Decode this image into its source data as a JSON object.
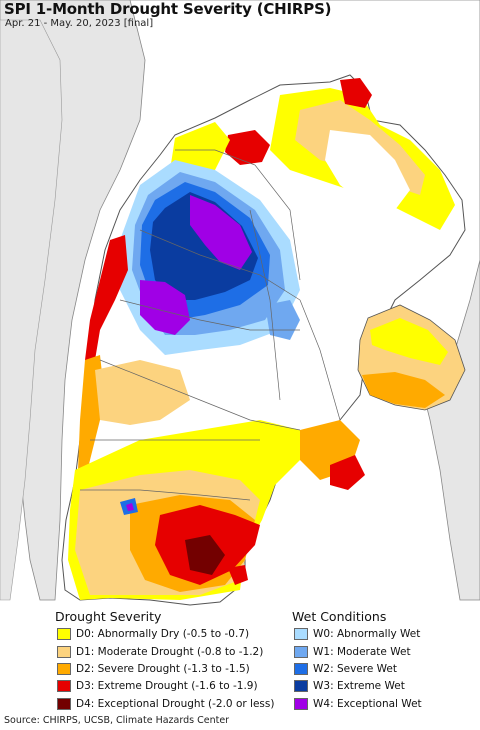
{
  "title": "SPI 1-Month Drought Severity (CHIRPS)",
  "subtitle": "Apr. 21 - May. 20, 2023 [final]",
  "legend": {
    "drought_heading": "Drought Severity",
    "wet_heading": "Wet Conditions",
    "drought": [
      {
        "label": "D0: Abnormally Dry (-0.5 to -0.7)",
        "color": "#ffff00"
      },
      {
        "label": "D1: Moderate Drought (-0.8 to -1.2)",
        "color": "#fcd37f"
      },
      {
        "label": "D2: Severe Drought (-1.3 to -1.5)",
        "color": "#ffaa00"
      },
      {
        "label": "D3: Extreme Drought (-1.6 to -1.9)",
        "color": "#e60000"
      },
      {
        "label": "D4: Exceptional Drought (-2.0 or less)",
        "color": "#730000"
      }
    ],
    "wet": [
      {
        "label": "W0: Abnormally Wet",
        "color": "#aadcff"
      },
      {
        "label": "W1: Moderate Wet",
        "color": "#6fa8f0"
      },
      {
        "label": "W2: Severe Wet",
        "color": "#1e6ee6"
      },
      {
        "label": "W3: Extreme Wet",
        "color": "#0a3ca0"
      },
      {
        "label": "W4: Exceptional Wet",
        "color": "#a000e6"
      }
    ]
  },
  "source": "Source: CHIRPS, UCSB, Climate Hazards Center",
  "colors": {
    "land_outside": "#e6e6e6",
    "ocean": "#ffffff",
    "border": "#555555"
  }
}
